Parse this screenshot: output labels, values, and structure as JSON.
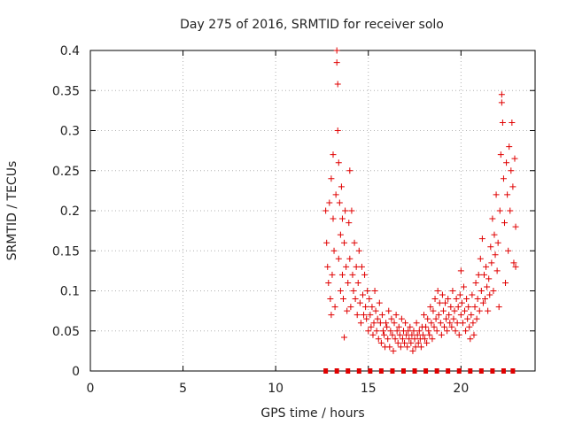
{
  "chart_data": {
    "type": "scatter",
    "title": "Day 275 of 2016, SRMTID for receiver solo",
    "xlabel": "GPS time / hours",
    "ylabel": "SRMTID / TECUs",
    "xlim": [
      0,
      24
    ],
    "ylim": [
      0,
      0.4
    ],
    "xticks": [
      0,
      5,
      10,
      15,
      20
    ],
    "xtick_labels": [
      "0",
      "5",
      "10",
      "15",
      "20"
    ],
    "yticks": [
      0,
      0.05,
      0.1,
      0.15,
      0.2,
      0.25,
      0.3,
      0.35,
      0.4
    ],
    "ytick_labels": [
      "0",
      "0.05",
      "0.1",
      "0.15",
      "0.2",
      "0.25",
      "0.3",
      "0.35",
      "0.4"
    ],
    "grid": true,
    "legend": "none",
    "series": [
      {
        "name": "SRMTID",
        "color": "#e00000",
        "marker": "plus",
        "points": [
          [
            12.7,
            0.2
          ],
          [
            12.75,
            0.16
          ],
          [
            12.8,
            0.13
          ],
          [
            12.85,
            0.11
          ],
          [
            12.9,
            0.21
          ],
          [
            12.95,
            0.09
          ],
          [
            13.0,
            0.24
          ],
          [
            13.0,
            0.07
          ],
          [
            13.05,
            0.12
          ],
          [
            13.1,
            0.19
          ],
          [
            13.1,
            0.27
          ],
          [
            13.15,
            0.15
          ],
          [
            13.2,
            0.08
          ],
          [
            13.25,
            0.22
          ],
          [
            13.3,
            0.4
          ],
          [
            13.3,
            0.385
          ],
          [
            13.35,
            0.358
          ],
          [
            13.35,
            0.3
          ],
          [
            13.4,
            0.26
          ],
          [
            13.4,
            0.14
          ],
          [
            13.45,
            0.21
          ],
          [
            13.5,
            0.17
          ],
          [
            13.5,
            0.1
          ],
          [
            13.55,
            0.23
          ],
          [
            13.6,
            0.19
          ],
          [
            13.6,
            0.12
          ],
          [
            13.65,
            0.09
          ],
          [
            13.7,
            0.042
          ],
          [
            13.7,
            0.16
          ],
          [
            13.75,
            0.2
          ],
          [
            13.8,
            0.13
          ],
          [
            13.85,
            0.075
          ],
          [
            13.9,
            0.11
          ],
          [
            13.95,
            0.185
          ],
          [
            14.0,
            0.25
          ],
          [
            14.0,
            0.14
          ],
          [
            14.05,
            0.08
          ],
          [
            14.1,
            0.2
          ],
          [
            14.15,
            0.12
          ],
          [
            14.2,
            0.1
          ],
          [
            14.25,
            0.16
          ],
          [
            14.3,
            0.09
          ],
          [
            14.35,
            0.13
          ],
          [
            14.4,
            0.07
          ],
          [
            14.45,
            0.11
          ],
          [
            14.5,
            0.15
          ],
          [
            14.55,
            0.085
          ],
          [
            14.6,
            0.06
          ],
          [
            14.65,
            0.13
          ],
          [
            14.7,
            0.095
          ],
          [
            14.75,
            0.07
          ],
          [
            14.8,
            0.12
          ],
          [
            14.85,
            0.08
          ],
          [
            14.9,
            0.065
          ],
          [
            14.95,
            0.1
          ],
          [
            15.0,
            0.05
          ],
          [
            15.05,
            0.09
          ],
          [
            15.1,
            0.07
          ],
          [
            15.15,
            0.055
          ],
          [
            15.2,
            0.08
          ],
          [
            15.25,
            0.045
          ],
          [
            15.3,
            0.06
          ],
          [
            15.35,
            0.1
          ],
          [
            15.4,
            0.075
          ],
          [
            15.45,
            0.05
          ],
          [
            15.5,
            0.065
          ],
          [
            15.55,
            0.04
          ],
          [
            15.6,
            0.085
          ],
          [
            15.65,
            0.06
          ],
          [
            15.7,
            0.035
          ],
          [
            15.75,
            0.07
          ],
          [
            15.8,
            0.05
          ],
          [
            15.85,
            0.045
          ],
          [
            15.9,
            0.03
          ],
          [
            15.95,
            0.06
          ],
          [
            16.0,
            0.055
          ],
          [
            16.05,
            0.04
          ],
          [
            16.1,
            0.075
          ],
          [
            16.15,
            0.03
          ],
          [
            16.2,
            0.05
          ],
          [
            16.25,
            0.065
          ],
          [
            16.3,
            0.045
          ],
          [
            16.35,
            0.025
          ],
          [
            16.4,
            0.06
          ],
          [
            16.45,
            0.04
          ],
          [
            16.5,
            0.07
          ],
          [
            16.55,
            0.05
          ],
          [
            16.6,
            0.035
          ],
          [
            16.65,
            0.055
          ],
          [
            16.7,
            0.045
          ],
          [
            16.75,
            0.03
          ],
          [
            16.8,
            0.065
          ],
          [
            16.85,
            0.04
          ],
          [
            16.9,
            0.05
          ],
          [
            16.95,
            0.035
          ],
          [
            17.0,
            0.06
          ],
          [
            17.05,
            0.045
          ],
          [
            17.1,
            0.03
          ],
          [
            17.15,
            0.05
          ],
          [
            17.2,
            0.04
          ],
          [
            17.25,
            0.055
          ],
          [
            17.3,
            0.035
          ],
          [
            17.35,
            0.045
          ],
          [
            17.4,
            0.025
          ],
          [
            17.45,
            0.05
          ],
          [
            17.5,
            0.04
          ],
          [
            17.55,
            0.03
          ],
          [
            17.6,
            0.06
          ],
          [
            17.65,
            0.045
          ],
          [
            17.7,
            0.035
          ],
          [
            17.75,
            0.05
          ],
          [
            17.8,
            0.04
          ],
          [
            17.85,
            0.03
          ],
          [
            17.9,
            0.055
          ],
          [
            17.95,
            0.045
          ],
          [
            18.0,
            0.07
          ],
          [
            18.05,
            0.04
          ],
          [
            18.1,
            0.055
          ],
          [
            18.15,
            0.035
          ],
          [
            18.2,
            0.065
          ],
          [
            18.25,
            0.05
          ],
          [
            18.3,
            0.045
          ],
          [
            18.35,
            0.08
          ],
          [
            18.4,
            0.06
          ],
          [
            18.45,
            0.04
          ],
          [
            18.5,
            0.075
          ],
          [
            18.55,
            0.055
          ],
          [
            18.6,
            0.09
          ],
          [
            18.65,
            0.065
          ],
          [
            18.7,
            0.05
          ],
          [
            18.75,
            0.1
          ],
          [
            18.8,
            0.07
          ],
          [
            18.85,
            0.085
          ],
          [
            18.9,
            0.06
          ],
          [
            18.95,
            0.045
          ],
          [
            19.0,
            0.095
          ],
          [
            19.05,
            0.075
          ],
          [
            19.1,
            0.055
          ],
          [
            19.15,
            0.085
          ],
          [
            19.2,
            0.065
          ],
          [
            19.25,
            0.05
          ],
          [
            19.3,
            0.09
          ],
          [
            19.35,
            0.07
          ],
          [
            19.4,
            0.06
          ],
          [
            19.45,
            0.08
          ],
          [
            19.5,
            0.055
          ],
          [
            19.55,
            0.1
          ],
          [
            19.6,
            0.065
          ],
          [
            19.65,
            0.075
          ],
          [
            19.7,
            0.05
          ],
          [
            19.75,
            0.09
          ],
          [
            19.8,
            0.06
          ],
          [
            19.85,
            0.08
          ],
          [
            19.9,
            0.045
          ],
          [
            19.95,
            0.095
          ],
          [
            20.0,
            0.125
          ],
          [
            20.0,
            0.07
          ],
          [
            20.05,
            0.085
          ],
          [
            20.1,
            0.06
          ],
          [
            20.15,
            0.105
          ],
          [
            20.2,
            0.075
          ],
          [
            20.25,
            0.05
          ],
          [
            20.3,
            0.09
          ],
          [
            20.35,
            0.065
          ],
          [
            20.4,
            0.08
          ],
          [
            20.45,
            0.055
          ],
          [
            20.5,
            0.04
          ],
          [
            20.55,
            0.07
          ],
          [
            20.6,
            0.095
          ],
          [
            20.65,
            0.06
          ],
          [
            20.7,
            0.045
          ],
          [
            20.75,
            0.08
          ],
          [
            20.8,
            0.11
          ],
          [
            20.85,
            0.065
          ],
          [
            20.9,
            0.09
          ],
          [
            20.95,
            0.12
          ],
          [
            21.0,
            0.075
          ],
          [
            21.05,
            0.14
          ],
          [
            21.1,
            0.1
          ],
          [
            21.15,
            0.165
          ],
          [
            21.2,
            0.085
          ],
          [
            21.25,
            0.12
          ],
          [
            21.3,
            0.09
          ],
          [
            21.35,
            0.13
          ],
          [
            21.4,
            0.105
          ],
          [
            21.45,
            0.075
          ],
          [
            21.5,
            0.115
          ],
          [
            21.55,
            0.095
          ],
          [
            21.6,
            0.155
          ],
          [
            21.65,
            0.135
          ],
          [
            21.7,
            0.19
          ],
          [
            21.75,
            0.1
          ],
          [
            21.8,
            0.17
          ],
          [
            21.85,
            0.145
          ],
          [
            21.9,
            0.22
          ],
          [
            21.95,
            0.125
          ],
          [
            22.0,
            0.16
          ],
          [
            22.05,
            0.08
          ],
          [
            22.1,
            0.2
          ],
          [
            22.15,
            0.27
          ],
          [
            22.2,
            0.345
          ],
          [
            22.2,
            0.335
          ],
          [
            22.25,
            0.31
          ],
          [
            22.3,
            0.24
          ],
          [
            22.35,
            0.185
          ],
          [
            22.4,
            0.11
          ],
          [
            22.45,
            0.26
          ],
          [
            22.5,
            0.22
          ],
          [
            22.55,
            0.15
          ],
          [
            22.6,
            0.28
          ],
          [
            22.65,
            0.2
          ],
          [
            22.7,
            0.25
          ],
          [
            22.75,
            0.31
          ],
          [
            22.8,
            0.23
          ],
          [
            22.85,
            0.135
          ],
          [
            22.9,
            0.265
          ],
          [
            22.95,
            0.18
          ],
          [
            22.95,
            0.13
          ]
        ]
      },
      {
        "name": "baseline",
        "color": "#e00000",
        "marker": "square",
        "points": [
          [
            12.7,
            0
          ],
          [
            13.3,
            0
          ],
          [
            13.9,
            0
          ],
          [
            14.5,
            0
          ],
          [
            15.1,
            0
          ],
          [
            15.7,
            0
          ],
          [
            16.3,
            0
          ],
          [
            16.9,
            0
          ],
          [
            17.5,
            0
          ],
          [
            18.1,
            0
          ],
          [
            18.7,
            0
          ],
          [
            19.3,
            0
          ],
          [
            19.9,
            0
          ],
          [
            20.5,
            0
          ],
          [
            21.1,
            0
          ],
          [
            21.7,
            0
          ],
          [
            22.3,
            0
          ],
          [
            22.8,
            0
          ]
        ]
      }
    ]
  }
}
